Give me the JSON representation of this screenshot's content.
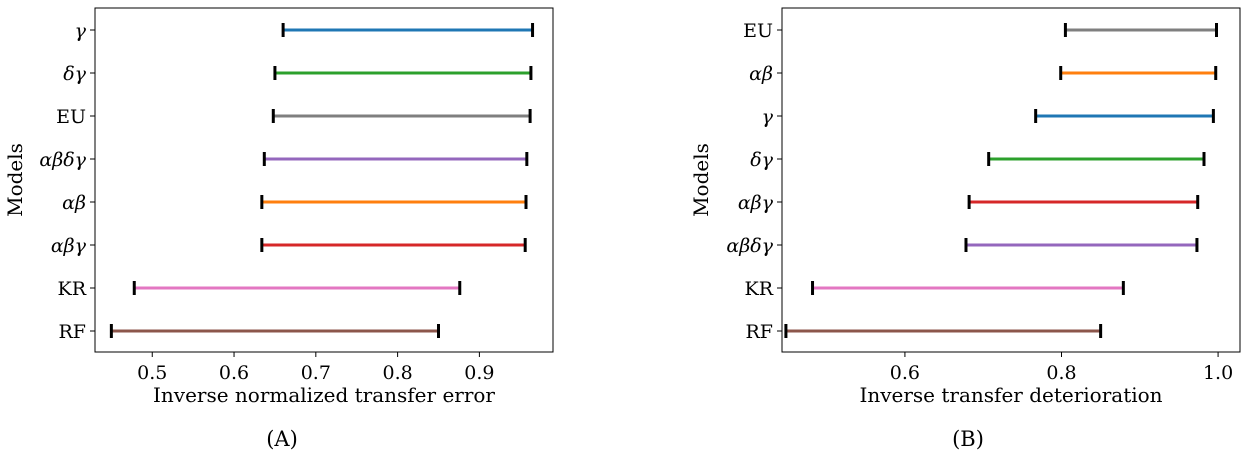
{
  "chart_data": [
    {
      "type": "range",
      "panel_label": "(A)",
      "xlabel": "Inverse normalized transfer error",
      "ylabel": "Models",
      "xlim": [
        0.43,
        0.99
      ],
      "xticks": [
        0.5,
        0.6,
        0.7,
        0.8,
        0.9
      ],
      "xtick_labels": [
        "0.5",
        "0.6",
        "0.7",
        "0.8",
        "0.9"
      ],
      "grid": false,
      "legend": "none",
      "series": [
        {
          "label": "γ",
          "low": 0.66,
          "high": 0.965,
          "color": "#1f77b4"
        },
        {
          "label": "δγ",
          "low": 0.65,
          "high": 0.963,
          "color": "#2ca02c"
        },
        {
          "label": "EU",
          "low": 0.648,
          "high": 0.962,
          "color": "#7f7f7f"
        },
        {
          "label": "αβδγ",
          "low": 0.637,
          "high": 0.958,
          "color": "#9467bd"
        },
        {
          "label": "αβ",
          "low": 0.634,
          "high": 0.957,
          "color": "#ff7f0e"
        },
        {
          "label": "αβγ",
          "low": 0.634,
          "high": 0.956,
          "color": "#d62728"
        },
        {
          "label": "KR",
          "low": 0.478,
          "high": 0.876,
          "color": "#e377c2"
        },
        {
          "label": "RF",
          "low": 0.45,
          "high": 0.85,
          "color": "#8c564b"
        }
      ]
    },
    {
      "type": "range",
      "panel_label": "(B)",
      "xlabel": "Inverse transfer deterioration",
      "ylabel": "Models",
      "xlim": [
        0.443,
        1.028
      ],
      "xticks": [
        0.6,
        0.8,
        1.0
      ],
      "xtick_labels": [
        "0.6",
        "0.8",
        "1.0"
      ],
      "grid": false,
      "legend": "none",
      "series": [
        {
          "label": "EU",
          "low": 0.805,
          "high": 0.998,
          "color": "#7f7f7f"
        },
        {
          "label": "αβ",
          "low": 0.799,
          "high": 0.997,
          "color": "#ff7f0e"
        },
        {
          "label": "γ",
          "low": 0.767,
          "high": 0.994,
          "color": "#1f77b4"
        },
        {
          "label": "δγ",
          "low": 0.707,
          "high": 0.982,
          "color": "#2ca02c"
        },
        {
          "label": "αβγ",
          "low": 0.682,
          "high": 0.974,
          "color": "#d62728"
        },
        {
          "label": "αβδγ",
          "low": 0.678,
          "high": 0.973,
          "color": "#9467bd"
        },
        {
          "label": "KR",
          "low": 0.482,
          "high": 0.879,
          "color": "#e377c2"
        },
        {
          "label": "RF",
          "low": 0.448,
          "high": 0.85,
          "color": "#8c564b"
        }
      ]
    }
  ]
}
